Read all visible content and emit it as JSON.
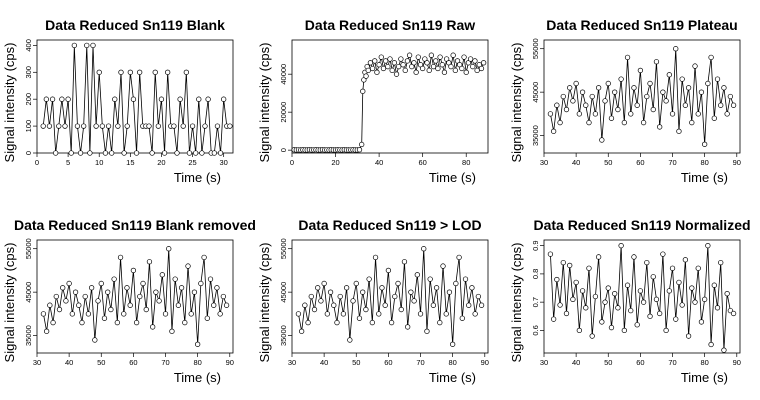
{
  "chart_data": [
    {
      "type": "line",
      "title": "Data Reduced Sn119 Blank",
      "xlabel": "Time (s)",
      "ylabel": "Signal intensity (cps)",
      "xlim": [
        0,
        31.5
      ],
      "ylim": [
        0,
        420
      ],
      "xticks": [
        0,
        5,
        10,
        15,
        20,
        25,
        30
      ],
      "yticks": [
        0,
        100,
        200,
        300,
        400
      ],
      "series": [
        {
          "x": [
            1.0,
            1.5,
            2.0,
            2.5,
            3.0,
            3.5,
            4.0,
            4.5,
            5.0,
            5.5,
            6.0,
            6.5,
            7.0,
            7.5,
            8.0,
            8.5,
            9.0,
            9.5,
            10.0,
            10.5,
            11.0,
            11.5,
            12.0,
            12.5,
            13.0,
            13.5,
            14.0,
            14.5,
            15.0,
            15.5,
            16.0,
            16.5,
            17.0,
            17.5,
            18.0,
            18.5,
            19.0,
            19.5,
            20.0,
            20.5,
            21.0,
            21.5,
            22.0,
            22.5,
            23.0,
            23.5,
            24.0,
            24.5,
            25.0,
            25.5,
            26.0,
            26.5,
            27.0,
            27.5,
            28.0,
            28.5,
            29.0,
            29.5,
            30.0,
            30.5,
            31.0
          ],
          "y": [
            100,
            200,
            100,
            200,
            0,
            100,
            200,
            100,
            200,
            0,
            400,
            100,
            0,
            100,
            400,
            0,
            400,
            100,
            300,
            100,
            0,
            100,
            0,
            200,
            100,
            300,
            0,
            100,
            300,
            200,
            0,
            300,
            100,
            100,
            100,
            0,
            300,
            100,
            200,
            0,
            300,
            100,
            100,
            0,
            200,
            100,
            300,
            0,
            100,
            0,
            200,
            0,
            100,
            200,
            0,
            0,
            100,
            0,
            200,
            100,
            100
          ]
        }
      ]
    },
    {
      "type": "line",
      "title": "Data Reduced Sn119 Raw",
      "xlabel": "Time (s)",
      "ylabel": "Signal intensity (cps)",
      "xlim": [
        0,
        90
      ],
      "ylim": [
        -1500,
        58000
      ],
      "xticks": [
        0,
        20,
        40,
        60,
        80
      ],
      "yticks": [
        0,
        20000,
        40000
      ],
      "series": [
        {
          "x": [
            1,
            2,
            3,
            4,
            5,
            6,
            7,
            8,
            9,
            10,
            11,
            12,
            13,
            14,
            15,
            16,
            17,
            18,
            19,
            20,
            21,
            22,
            23,
            24,
            25,
            26,
            27,
            28,
            29,
            30,
            31,
            32,
            32.5,
            33,
            33.5,
            34,
            34.5,
            35,
            36,
            37,
            38,
            39,
            40,
            41,
            42,
            43,
            44,
            45,
            46,
            47,
            48,
            49,
            50,
            51,
            52,
            53,
            54,
            55,
            56,
            57,
            58,
            59,
            60,
            61,
            62,
            63,
            64,
            65,
            66,
            67,
            68,
            69,
            70,
            71,
            72,
            73,
            74,
            75,
            76,
            77,
            78,
            79,
            80,
            81,
            82,
            83,
            84,
            85,
            86,
            87,
            88
          ],
          "y": [
            200,
            100,
            150,
            100,
            200,
            100,
            100,
            200,
            100,
            150,
            200,
            100,
            100,
            200,
            100,
            150,
            100,
            200,
            100,
            100,
            200,
            150,
            100,
            200,
            100,
            100,
            150,
            200,
            100,
            100,
            200,
            3000,
            31000,
            37000,
            41000,
            39000,
            44000,
            42000,
            46000,
            43000,
            47000,
            41000,
            45000,
            49000,
            43000,
            47000,
            44000,
            48000,
            42000,
            46000,
            40000,
            44000,
            48000,
            45000,
            42000,
            47000,
            50000,
            44000,
            46000,
            41000,
            49000,
            45000,
            43000,
            48000,
            46000,
            42000,
            50000,
            44000,
            47000,
            43000,
            49000,
            45000,
            41000,
            48000,
            46000,
            44000,
            50000,
            42000,
            47000,
            45000,
            43000,
            49000,
            41000,
            46000,
            48000,
            44000,
            47000,
            42000,
            45000,
            43000,
            46000
          ]
        }
      ]
    },
    {
      "type": "line",
      "title": "Data Reduced Sn119 Plateau",
      "xlabel": "Time (s)",
      "ylabel": "Signal intensity (cps)",
      "xlim": [
        30,
        91
      ],
      "ylim": [
        31000,
        57000
      ],
      "xticks": [
        30,
        40,
        50,
        60,
        70,
        80,
        90
      ],
      "yticks": [
        35000,
        45000,
        55000
      ],
      "series": [
        {
          "x": [
            32,
            33,
            34,
            35,
            36,
            37,
            38,
            39,
            40,
            41,
            42,
            43,
            44,
            45,
            46,
            47,
            48,
            49,
            50,
            51,
            52,
            53,
            54,
            55,
            56,
            57,
            58,
            59,
            60,
            61,
            62,
            63,
            64,
            65,
            66,
            67,
            68,
            69,
            70,
            71,
            72,
            73,
            74,
            75,
            76,
            77,
            78,
            79,
            80,
            81,
            82,
            83,
            84,
            85,
            86,
            87,
            88,
            89
          ],
          "y": [
            40000,
            36000,
            42000,
            38000,
            44000,
            41000,
            46000,
            43000,
            47000,
            40000,
            45000,
            42000,
            38000,
            44000,
            40000,
            46000,
            34000,
            43000,
            47000,
            39000,
            45000,
            41000,
            48000,
            38000,
            53000,
            40000,
            46000,
            42000,
            50000,
            38000,
            44000,
            47000,
            41000,
            52000,
            37000,
            45000,
            43000,
            49000,
            40000,
            55000,
            36000,
            48000,
            42000,
            46000,
            38000,
            51000,
            40000,
            45000,
            33000,
            47000,
            53000,
            39000,
            48000,
            42000,
            46000,
            40000,
            44000,
            42000
          ]
        }
      ]
    },
    {
      "type": "line",
      "title": "Data Reduced Sn119 Blank removed",
      "xlabel": "Time (s)",
      "ylabel": "Signal intensity (cps)",
      "xlim": [
        30,
        91
      ],
      "ylim": [
        31000,
        57000
      ],
      "xticks": [
        30,
        40,
        50,
        60,
        70,
        80,
        90
      ],
      "yticks": [
        35000,
        45000,
        55000
      ],
      "series": [
        {
          "x": [
            32,
            33,
            34,
            35,
            36,
            37,
            38,
            39,
            40,
            41,
            42,
            43,
            44,
            45,
            46,
            47,
            48,
            49,
            50,
            51,
            52,
            53,
            54,
            55,
            56,
            57,
            58,
            59,
            60,
            61,
            62,
            63,
            64,
            65,
            66,
            67,
            68,
            69,
            70,
            71,
            72,
            73,
            74,
            75,
            76,
            77,
            78,
            79,
            80,
            81,
            82,
            83,
            84,
            85,
            86,
            87,
            88,
            89
          ],
          "y": [
            40000,
            36000,
            42000,
            38000,
            44000,
            41000,
            46000,
            43000,
            47000,
            40000,
            45000,
            42000,
            38000,
            44000,
            40000,
            46000,
            34000,
            43000,
            47000,
            39000,
            45000,
            41000,
            48000,
            38000,
            53000,
            40000,
            46000,
            42000,
            50000,
            38000,
            44000,
            47000,
            41000,
            52000,
            37000,
            45000,
            43000,
            49000,
            40000,
            55000,
            36000,
            48000,
            42000,
            46000,
            38000,
            51000,
            40000,
            45000,
            33000,
            47000,
            53000,
            39000,
            48000,
            42000,
            46000,
            40000,
            44000,
            42000
          ]
        }
      ]
    },
    {
      "type": "line",
      "title": "Data Reduced Sn119 > LOD",
      "xlabel": "Time (s)",
      "ylabel": "Signal intensity (cps)",
      "xlim": [
        30,
        91
      ],
      "ylim": [
        31000,
        57000
      ],
      "xticks": [
        30,
        40,
        50,
        60,
        70,
        80,
        90
      ],
      "yticks": [
        35000,
        45000,
        55000
      ],
      "series": [
        {
          "x": [
            32,
            33,
            34,
            35,
            36,
            37,
            38,
            39,
            40,
            41,
            42,
            43,
            44,
            45,
            46,
            47,
            48,
            49,
            50,
            51,
            52,
            53,
            54,
            55,
            56,
            57,
            58,
            59,
            60,
            61,
            62,
            63,
            64,
            65,
            66,
            67,
            68,
            69,
            70,
            71,
            72,
            73,
            74,
            75,
            76,
            77,
            78,
            79,
            80,
            81,
            82,
            83,
            84,
            85,
            86,
            87,
            88,
            89
          ],
          "y": [
            40000,
            36000,
            42000,
            38000,
            44000,
            41000,
            46000,
            43000,
            47000,
            40000,
            45000,
            42000,
            38000,
            44000,
            40000,
            46000,
            34000,
            43000,
            47000,
            39000,
            45000,
            41000,
            48000,
            38000,
            53000,
            40000,
            46000,
            42000,
            50000,
            38000,
            44000,
            47000,
            41000,
            52000,
            37000,
            45000,
            43000,
            49000,
            40000,
            55000,
            36000,
            48000,
            42000,
            46000,
            38000,
            51000,
            40000,
            45000,
            33000,
            47000,
            53000,
            39000,
            48000,
            42000,
            46000,
            40000,
            44000,
            42000
          ]
        }
      ]
    },
    {
      "type": "line",
      "title": "Data Reduced Sn119 Normalized",
      "xlabel": "Time (s)",
      "ylabel": "Signal intensity (cps)",
      "xlim": [
        30,
        91
      ],
      "ylim": [
        0.52,
        0.92
      ],
      "xticks": [
        30,
        40,
        50,
        60,
        70,
        80,
        90
      ],
      "yticks": [
        0.6,
        0.7,
        0.8,
        0.9
      ],
      "series": [
        {
          "x": [
            32,
            33,
            34,
            35,
            36,
            37,
            38,
            39,
            40,
            41,
            42,
            43,
            44,
            45,
            46,
            47,
            48,
            49,
            50,
            51,
            52,
            53,
            54,
            55,
            56,
            57,
            58,
            59,
            60,
            61,
            62,
            63,
            64,
            65,
            66,
            67,
            68,
            69,
            70,
            71,
            72,
            73,
            74,
            75,
            76,
            77,
            78,
            79,
            80,
            81,
            82,
            83,
            84,
            85,
            86,
            87,
            88,
            89
          ],
          "y": [
            0.87,
            0.64,
            0.78,
            0.69,
            0.84,
            0.66,
            0.83,
            0.71,
            0.77,
            0.6,
            0.74,
            0.68,
            0.82,
            0.58,
            0.72,
            0.86,
            0.63,
            0.7,
            0.75,
            0.61,
            0.73,
            0.68,
            0.9,
            0.6,
            0.76,
            0.67,
            0.86,
            0.62,
            0.74,
            0.7,
            0.84,
            0.65,
            0.79,
            0.71,
            0.66,
            0.87,
            0.6,
            0.74,
            0.82,
            0.64,
            0.77,
            0.69,
            0.85,
            0.58,
            0.75,
            0.7,
            0.82,
            0.63,
            0.71,
            0.9,
            0.55,
            0.76,
            0.68,
            0.84,
            0.53,
            0.73,
            0.67,
            0.66
          ]
        }
      ]
    }
  ]
}
